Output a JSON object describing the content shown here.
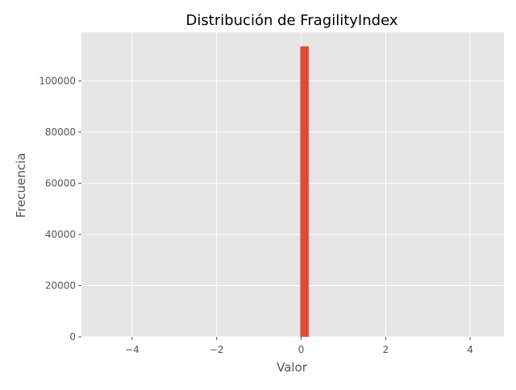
{
  "chart_data": {
    "type": "bar",
    "title": "Distribución de FragilityIndex",
    "xlabel": "Valor",
    "ylabel": "Frecuencia",
    "xlim": [
      -5.2,
      4.8
    ],
    "ylim": [
      0,
      119000
    ],
    "x_ticks": [
      -4,
      -2,
      0,
      2,
      4
    ],
    "x_tick_labels": [
      "−4",
      "−2",
      "0",
      "2",
      "4"
    ],
    "y_ticks": [
      0,
      20000,
      40000,
      60000,
      80000,
      100000
    ],
    "y_tick_labels": [
      "0",
      "20000",
      "40000",
      "60000",
      "80000",
      "100000"
    ],
    "grid": true,
    "bars": [
      {
        "x0": -0.02,
        "x1": 0.18,
        "value": 113500
      }
    ],
    "colors": {
      "bar": "#E24A33",
      "plot_background": "#E5E5E5",
      "grid": "#FFFFFF",
      "text": "#555555",
      "title": "#000000"
    }
  }
}
